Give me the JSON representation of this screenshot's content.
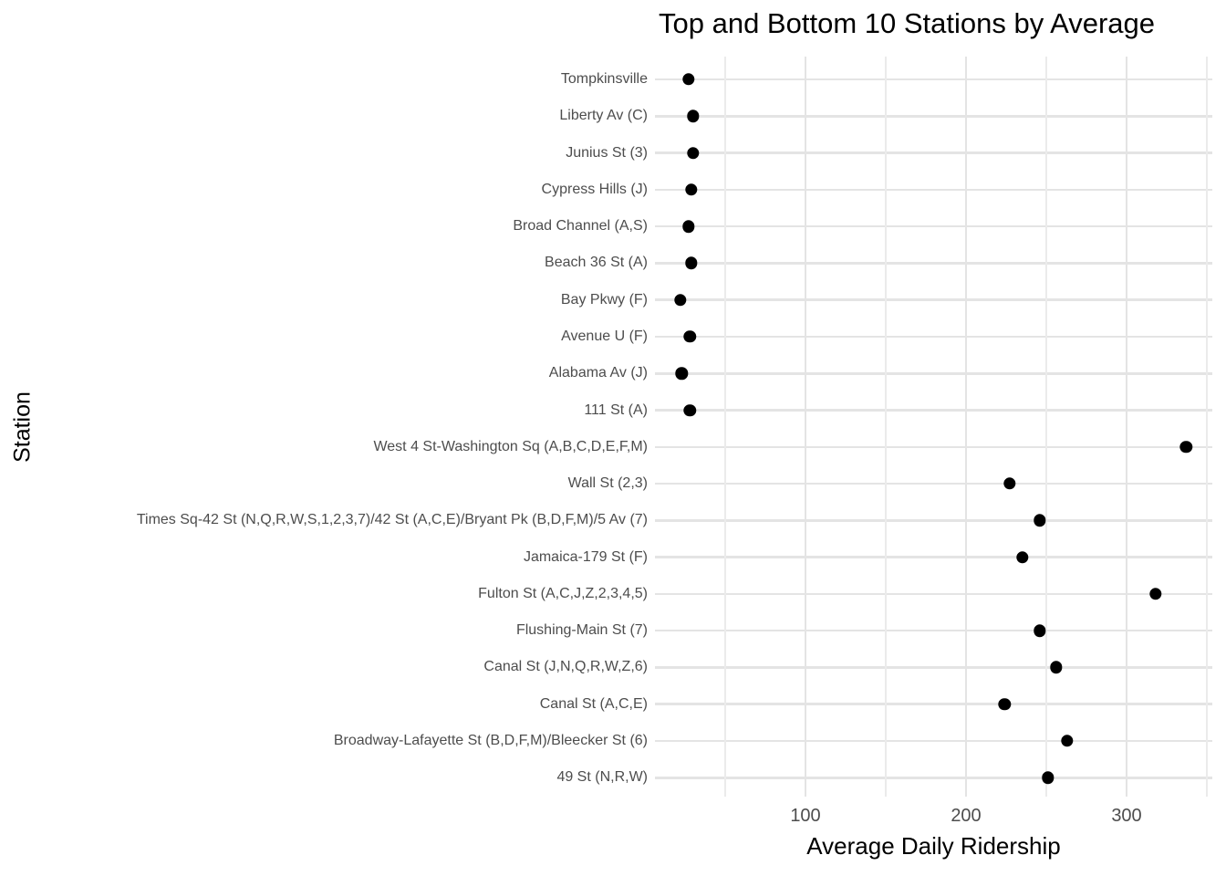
{
  "title": "Top and Bottom 10 Stations by Average",
  "colors": {
    "background": "#ffffff",
    "dot": "#000000",
    "axis_text": "#4d4d4d",
    "title_text": "#000000",
    "grid_major": "#e4e4e4",
    "grid_minor": "#ebebeb"
  },
  "chart_data": {
    "type": "scatter",
    "subtype": "horizontal-dot-plot",
    "title": "Top and Bottom 10 Stations by Average",
    "xlabel": "Average Daily Ridership",
    "ylabel": "Station",
    "xlim": [
      6,
      353
    ],
    "x_major_ticks": [
      100,
      200,
      300
    ],
    "x_minor_gridlines": [
      50,
      150,
      250,
      350
    ],
    "grid": "vertical major+minor lines; one horizontal major line per category; no axis lines or tick marks",
    "legend": "none",
    "categories": [
      "Tompkinsville",
      "Liberty Av (C)",
      "Junius St (3)",
      "Cypress Hills (J)",
      "Broad Channel (A,S)",
      "Beach 36 St (A)",
      "Bay Pkwy (F)",
      "Avenue U (F)",
      "Alabama Av (J)",
      "111 St (A)",
      "West 4 St-Washington Sq (A,B,C,D,E,F,M)",
      "Wall St (2,3)",
      "Times Sq-42 St (N,Q,R,W,S,1,2,3,7)/42 St (A,C,E)/Bryant Pk (B,D,F,M)/5 Av (7)",
      "Jamaica-179 St (F)",
      "Fulton St (A,C,J,Z,2,3,4,5)",
      "Flushing-Main St (7)",
      "Canal St (J,N,Q,R,W,Z,6)",
      "Canal St (A,C,E)",
      "Broadway-Lafayette St (B,D,F,M)/Bleecker St (6)",
      "49 St (N,R,W)"
    ],
    "values": [
      27,
      30,
      30,
      29,
      27,
      29,
      22,
      28,
      23,
      28,
      337,
      227,
      246,
      235,
      318,
      246,
      256,
      224,
      263,
      251
    ]
  }
}
